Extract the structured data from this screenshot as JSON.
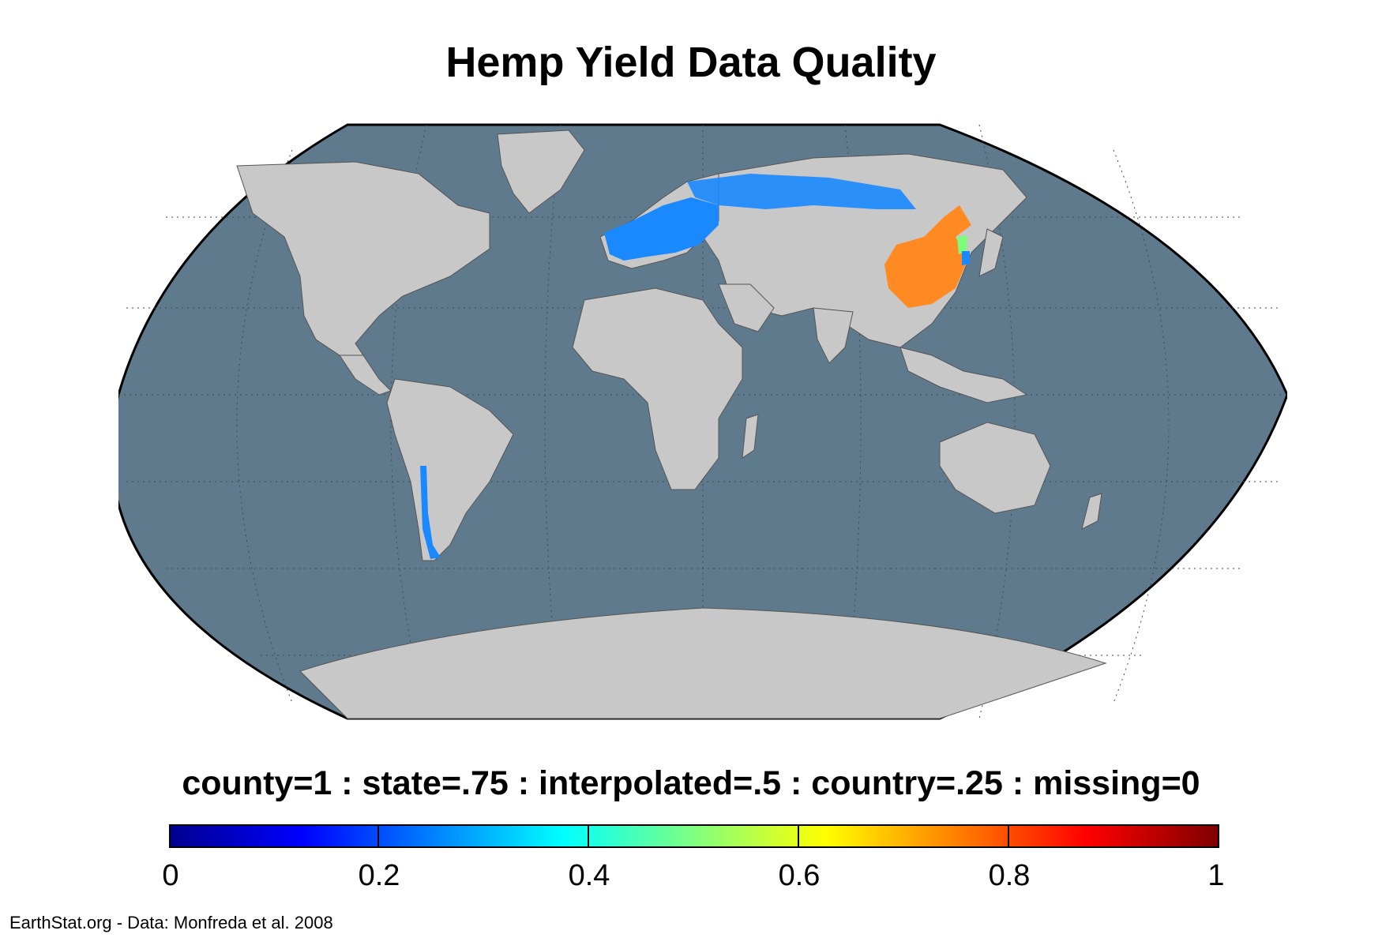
{
  "title": "Hemp Yield Data Quality",
  "legend_text": "county=1 : state=.75 : interpolated=.5 : country=.25 : missing=0",
  "colorbar": {
    "min": 0,
    "max": 1,
    "tick_labels": [
      "0",
      "0.2",
      "0.4",
      "0.6",
      "0.8",
      "1"
    ],
    "colormap": "jet"
  },
  "credit": "EarthStat.org - Data: Monfreda et al. 2008",
  "map": {
    "projection": "robinson",
    "ocean_color": "#5f7a8c",
    "land_color": "#c8c8c8",
    "border_color": "#555555",
    "graticule": "dotted",
    "highlighted_regions": [
      {
        "region": "Europe",
        "value": 0.25,
        "color": "#1a88ff"
      },
      {
        "region": "Russia",
        "value": 0.25,
        "color": "#1a88ff"
      },
      {
        "region": "Chile",
        "value": 0.25,
        "color": "#1a88ff"
      },
      {
        "region": "China",
        "value": 0.75,
        "color": "#ff8a22"
      },
      {
        "region": "North Korea",
        "value": 0.5,
        "color": "#7dff7d"
      },
      {
        "region": "South Korea",
        "value": 0.25,
        "color": "#1a88ff"
      }
    ]
  }
}
